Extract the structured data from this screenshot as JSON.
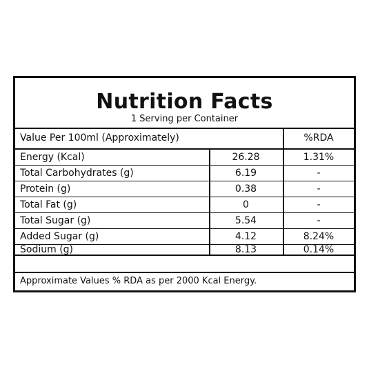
{
  "label": {
    "title": "Nutrition Facts",
    "subtitle": "1 Serving per Container",
    "header": {
      "label": "Value Per 100ml (Approximately)",
      "rda": "%RDA"
    },
    "rows": [
      {
        "label": "Energy (Kcal)",
        "value": "26.28",
        "rda": "1.31%"
      },
      {
        "label": "Total Carbohydrates (g)",
        "value": "6.19",
        "rda": "-"
      },
      {
        "label": "Protein (g)",
        "value": "0.38",
        "rda": "-"
      },
      {
        "label": "Total Fat (g)",
        "value": "0",
        "rda": "-"
      },
      {
        "label": "Total Sugar (g)",
        "value": "5.54",
        "rda": "-"
      },
      {
        "label": "Added Sugar (g)",
        "value": "4.12",
        "rda": "8.24%"
      },
      {
        "label": "Sodium (g)",
        "value": "8.13",
        "rda": "0.14%"
      }
    ],
    "footnote": "Approximate Values % RDA as per 2000 Kcal Energy."
  }
}
